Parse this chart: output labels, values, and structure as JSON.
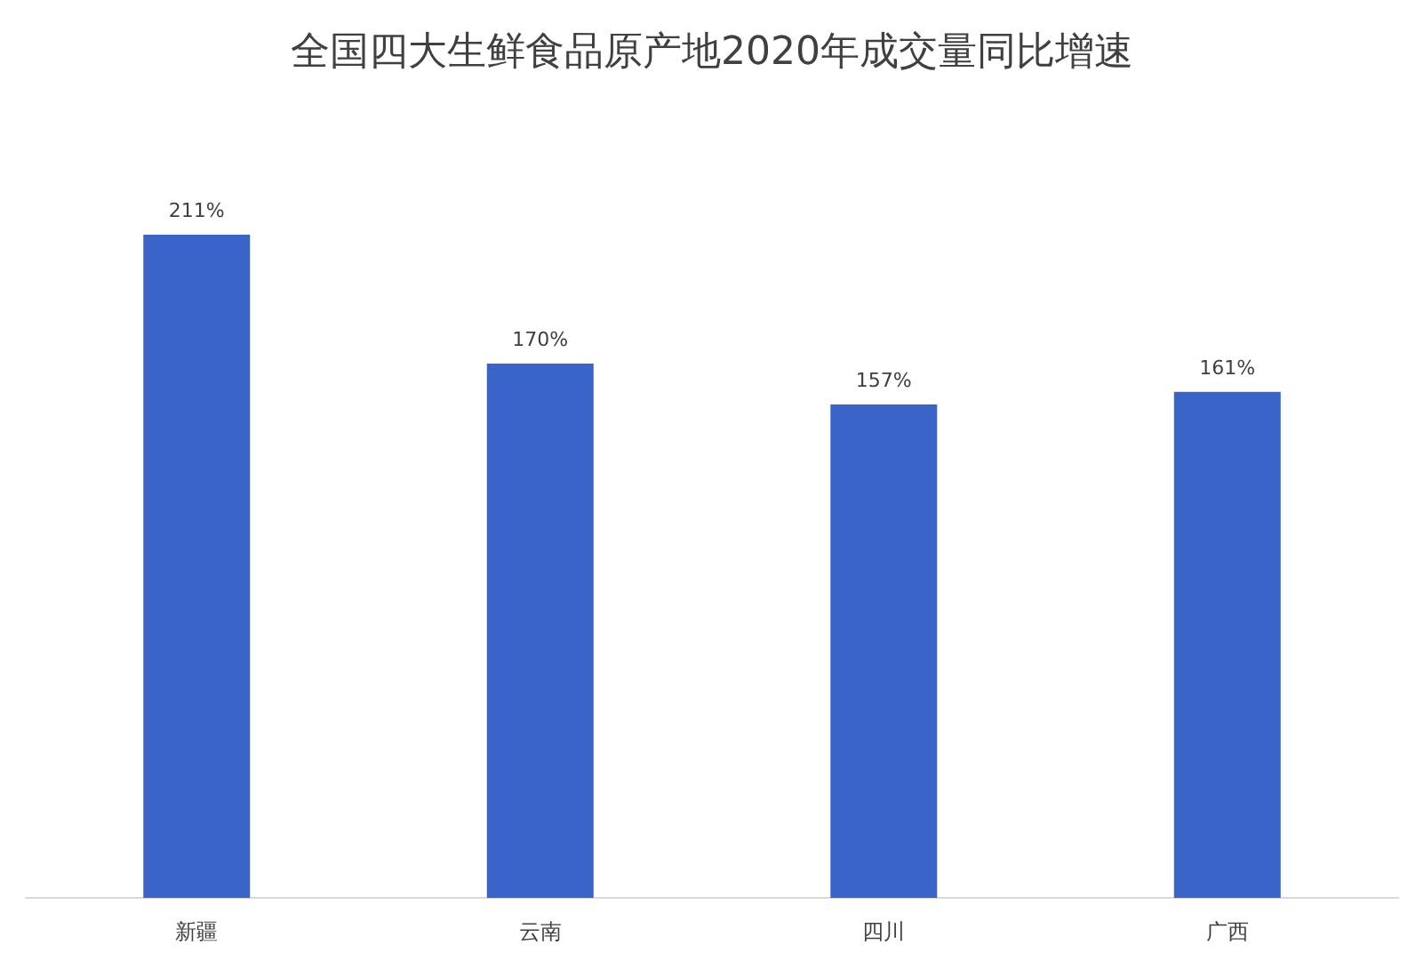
{
  "chart_data": {
    "type": "bar",
    "title": "全国四大生鲜食品原产地2020年成交量同比增速",
    "categories": [
      "新疆",
      "云南",
      "四川",
      "广西"
    ],
    "values": [
      211,
      170,
      157,
      161
    ],
    "value_labels": [
      "211%",
      "170%",
      "157%",
      "161%"
    ],
    "color": "#3a64c8"
  }
}
